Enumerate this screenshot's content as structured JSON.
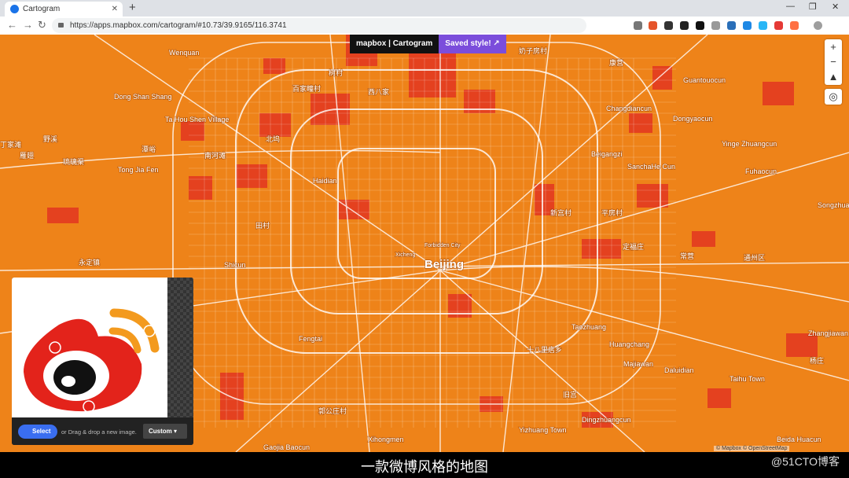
{
  "browser": {
    "tab_title": "Cartogram",
    "url": "https://apps.mapbox.com/cartogram/#10.73/39.9165/116.3741"
  },
  "header": {
    "brand": "mapbox",
    "app": "Cartogram",
    "status": "Saved style!"
  },
  "map": {
    "city": "Beijing",
    "labels": [
      "Wenquan",
      "Dong Shan Shang",
      "Ta Hou Shen Village",
      "Tong Jia Fen",
      "丁家滩",
      "雁翅",
      "野溪",
      "琉璃渠",
      "潭峪",
      "南河滩",
      "北坞",
      "百家疃村",
      "树村",
      "西八家",
      "Haidian",
      "永定镇",
      "田村",
      "Forbidden City",
      "Xicheng",
      "Fengtai",
      "Taozhuang",
      "Huangchang",
      "Majiawan",
      "Daluidian",
      "Taihu Town",
      "Dongyaocun",
      "Yinge Zhuangcun",
      "Fuhaocun",
      "Changdiancun",
      "SanchaHe Cun",
      "Beigangzi",
      "Guantouocun",
      "Songzhuang",
      "Zhangjiawan Town",
      "Dingzhuangcun",
      "Yizhuang Town",
      "Xihongmen",
      "Gaojia Baocun",
      "Beida Huacun",
      "通州区",
      "康营",
      "奶子房村",
      "平房村",
      "定福庄",
      "常营",
      "十八里店乡",
      "新宫村",
      "郭公庄村",
      "旧宫",
      "Shicun",
      "杨庄"
    ],
    "attribution": "© Mapbox © OpenStreetMap"
  },
  "image_panel": {
    "select": "Select",
    "hint": "or Drag & drop a new image.",
    "style": "Custom"
  },
  "caption": "一款微博风格的地图",
  "watermark": "@51CTO博客"
}
